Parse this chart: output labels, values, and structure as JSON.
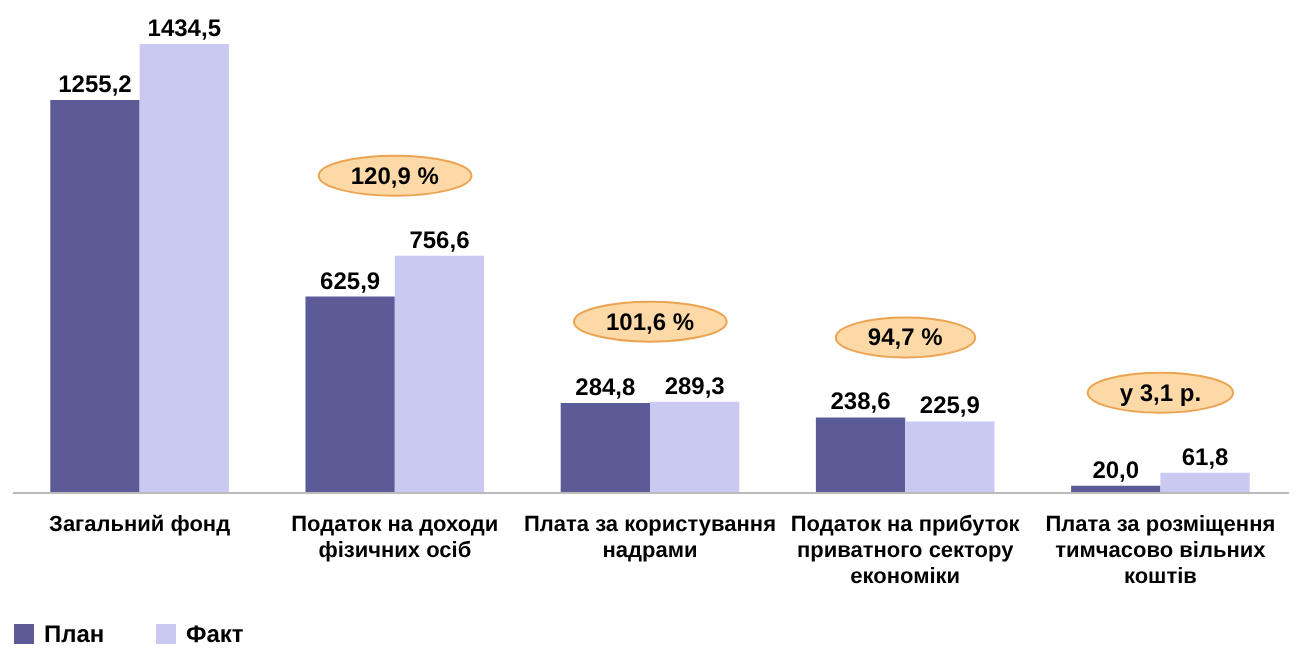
{
  "chart_data": {
    "type": "bar",
    "categories": [
      "Загальний фонд",
      "Податок на доходи фізичних осіб",
      "Плата за користування надрами",
      "Податок на прибуток приватного сектору економіки",
      "Плата за розміщення тимчасово вільних коштів"
    ],
    "series": [
      {
        "name": "План",
        "color": "#5b5b98",
        "values": [
          1255.2,
          625.9,
          284.8,
          238.6,
          20.0
        ],
        "value_labels": [
          "1255,2",
          "625,9",
          "284,8",
          "238,6",
          "20,0"
        ]
      },
      {
        "name": "Факт",
        "color": "#c9c9f2",
        "values": [
          1434.5,
          756.6,
          289.3,
          225.9,
          61.8
        ],
        "value_labels": [
          "1434,5",
          "756,6",
          "289,3",
          "225,9",
          "61,8"
        ]
      }
    ],
    "annotations": [
      "120,9 %",
      "101,6 %",
      "94,7 %",
      "у 3,1 р."
    ],
    "legend": "bottom",
    "grid": false
  }
}
